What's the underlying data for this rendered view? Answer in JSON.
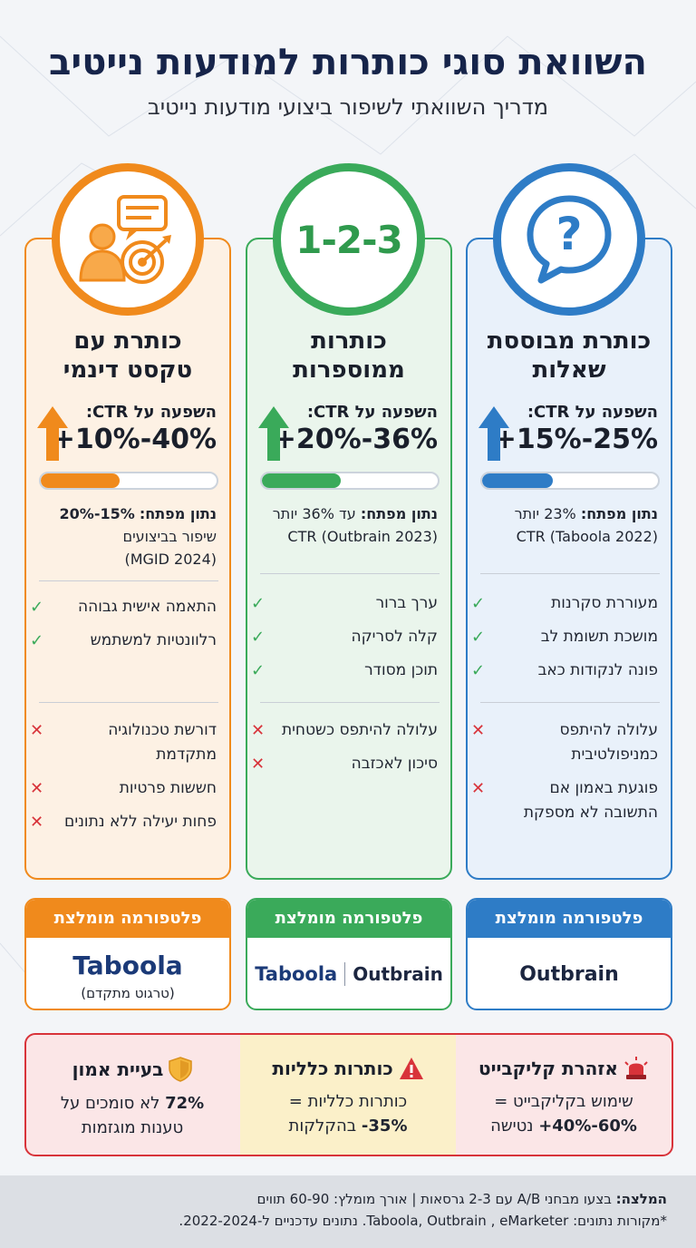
{
  "header": {
    "title": "השוואת סוגי כותרות למודעות נייטיב",
    "subtitle": "מדריך השוואתי לשיפור ביצועי מודעות נייטיב"
  },
  "cards": [
    {
      "id": "question",
      "color": "#2e7cc6",
      "icon": "question-bubble-icon",
      "title_line1": "כותרת מבוססת",
      "title_line2": "שאלות",
      "impact_label": "השפעה על CTR:",
      "impact_value": "+15%-25%",
      "progress_fraction": 0.4,
      "keystat_label": "נתון מפתח:",
      "keystat_value": "23% יותר",
      "keystat_line2": "CTR (Taboola 2022)",
      "keystat_line3": "",
      "pros": [
        "מעוררת סקרנות",
        "מושכת תשומת לב",
        "פונה לנקודות כאב"
      ],
      "cons": [
        "עלולה להיתפס כמניפולטיבית",
        "פוגעת באמון אם התשובה לא מספקת"
      ],
      "platform_header": "פלטפורמה מומלצת",
      "platform_logos": [
        "Outbrain"
      ],
      "platform_note": ""
    },
    {
      "id": "numbered",
      "color": "#3aaa5a",
      "icon": "numbers-123-icon",
      "icon_text": "1-2-3",
      "title_line1": "כותרות",
      "title_line2": "ממוספרות",
      "impact_label": "השפעה על CTR:",
      "impact_value": "+20%-36%",
      "progress_fraction": 0.45,
      "keystat_label": "נתון מפתח:",
      "keystat_value": "עד 36% יותר",
      "keystat_line2": "CTR (Outbrain 2023)",
      "keystat_line3": "",
      "pros": [
        "ערך ברור",
        "קלה לסריקה",
        "תוכן מסודר"
      ],
      "cons": [
        "עלולה להיתפס כשטחית",
        "סיכון לאכזבה"
      ],
      "platform_header": "פלטפורמה מומלצת",
      "platform_logos": [
        "Outbrain",
        "Taboola"
      ],
      "platform_note": ""
    },
    {
      "id": "dynamic",
      "color": "#f08a1c",
      "icon": "person-target-icon",
      "title_line1": "כותרת עם",
      "title_line2": "טקסט דינמי",
      "impact_label": "השפעה על CTR:",
      "impact_value": "+10%-40%",
      "progress_fraction": 0.45,
      "keystat_label": "נתון מפתח:",
      "keystat_value": "15%-20%",
      "keystat_line2": "שיפור בביצועים",
      "keystat_line3": "(MGID 2024)",
      "pros": [
        "התאמה אישית גבוהה",
        "רלוונטיות למשתמש"
      ],
      "cons": [
        "דורשת טכנולוגיה מתקדמת",
        "חששות פרטיות",
        "פחות יעילה ללא נתונים"
      ],
      "platform_header": "פלטפורמה מומלצת",
      "platform_logos": [
        "Taboola"
      ],
      "platform_note": "(טרגוט מתקדם)"
    }
  ],
  "warnings": [
    {
      "title": "אזהרת קליקבייט",
      "icon": "siren-icon",
      "line1": "שימוש בקליקבייט =",
      "line2_bold": "+40%-60%",
      "line2_rest": " נטישה",
      "bg": "#fbe6e7"
    },
    {
      "title": "כותרות כלליות",
      "icon": "warning-triangle-icon",
      "line1": "כותרות כלליות =",
      "line2_bold": "-35%",
      "line2_rest": " בהקלקות",
      "bg": "#fbf0c9"
    },
    {
      "title": "בעיית אמון",
      "icon": "shield-icon",
      "line1_bold": "72%",
      "line1": " לא סומכים על",
      "line2": "טענות מוגזמות",
      "bg": "#fbe6e7"
    }
  ],
  "footer": {
    "rec_label": "המלצה:",
    "rec_text": " בצעו מבחני A/B עם 2-3 גרסאות | אורך מומלץ: 60-90 תווים",
    "sources": "*מקורות נתונים: Taboola, Outbrain , eMarketer. נתונים עדכניים ל-2022-2024."
  }
}
